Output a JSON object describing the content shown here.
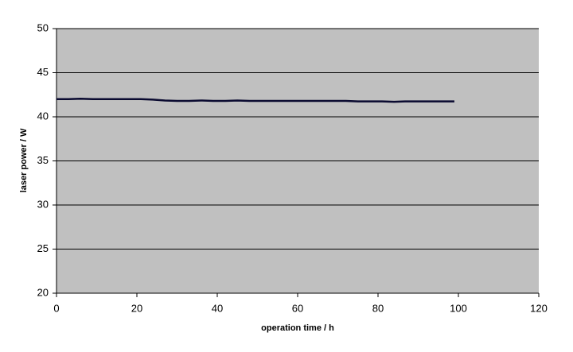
{
  "chart_data": {
    "type": "line",
    "xlabel": "operation time / h",
    "ylabel": "laser power / W",
    "x": [
      0,
      3,
      6,
      9,
      12,
      15,
      18,
      21,
      24,
      27,
      30,
      33,
      36,
      39,
      42,
      45,
      48,
      51,
      54,
      57,
      60,
      63,
      66,
      69,
      72,
      75,
      78,
      81,
      84,
      87,
      90,
      93,
      96,
      99
    ],
    "values": [
      42.0,
      42.0,
      42.05,
      42.0,
      42.0,
      42.0,
      42.0,
      42.0,
      41.95,
      41.85,
      41.8,
      41.8,
      41.85,
      41.8,
      41.8,
      41.85,
      41.8,
      41.8,
      41.8,
      41.8,
      41.8,
      41.8,
      41.8,
      41.8,
      41.8,
      41.75,
      41.75,
      41.75,
      41.7,
      41.75,
      41.75,
      41.75,
      41.75,
      41.75
    ],
    "color": "#0a0a30",
    "xlim": [
      0,
      120
    ],
    "xticks": [
      0,
      20,
      40,
      60,
      80,
      100,
      120
    ],
    "ylim": [
      20,
      50
    ],
    "yticks": [
      20,
      25,
      30,
      35,
      40,
      45,
      50
    ],
    "grid": true
  }
}
